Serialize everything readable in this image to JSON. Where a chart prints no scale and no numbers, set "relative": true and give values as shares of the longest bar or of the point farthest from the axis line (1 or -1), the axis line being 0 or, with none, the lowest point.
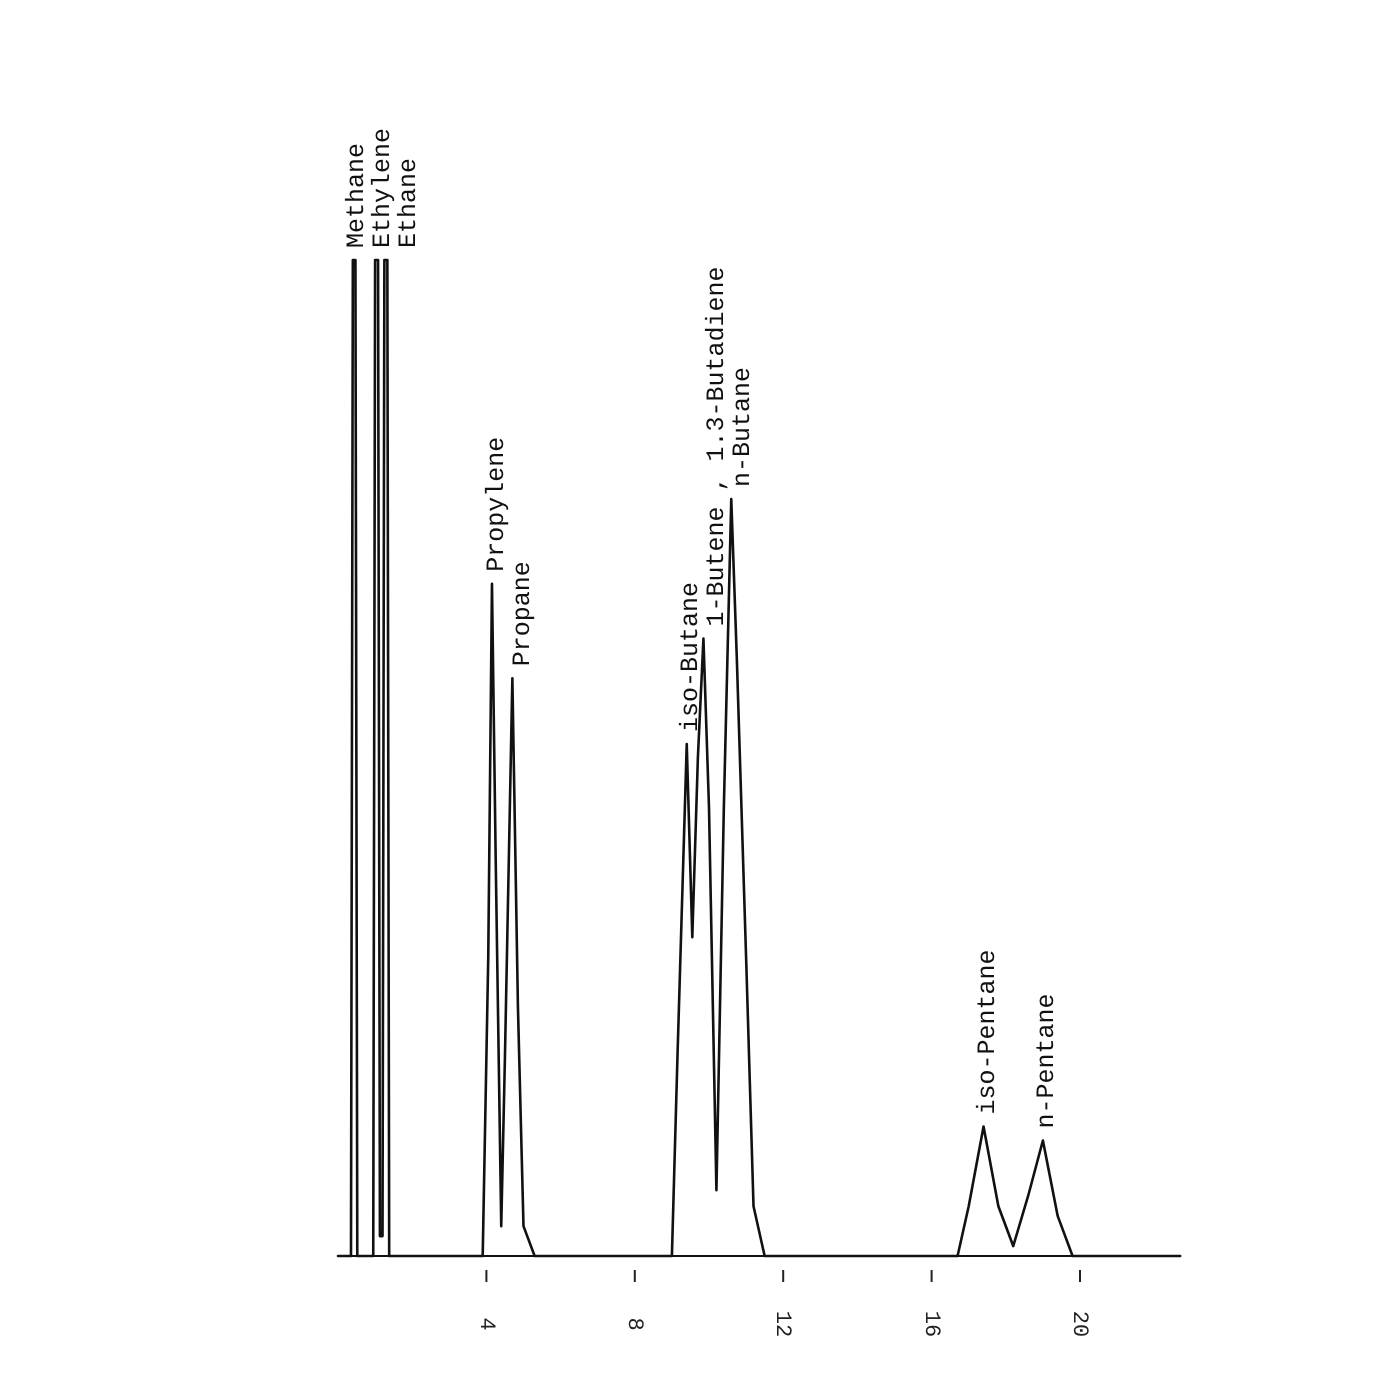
{
  "chart_data": {
    "type": "line",
    "relative": true,
    "xlim": [
      0,
      22.7
    ],
    "xticks": [
      4,
      8,
      12,
      16,
      20
    ],
    "series": [
      {
        "color": "#111111",
        "x": [
          0,
          0.35,
          0.4,
          0.47,
          0.52,
          0.95,
          1.0,
          1.08,
          1.13,
          1.2,
          1.25,
          1.33,
          1.38,
          3.9,
          4.05,
          4.15,
          4.25,
          4.4,
          4.5,
          4.7,
          4.85,
          5.0,
          5.3,
          9.0,
          9.15,
          9.4,
          9.55,
          9.7,
          9.85,
          10.0,
          10.2,
          10.4,
          10.6,
          10.75,
          11.0,
          11.2,
          11.5,
          16.7,
          17.0,
          17.4,
          17.8,
          18.2,
          18.6,
          19.0,
          19.4,
          19.8,
          22.7
        ],
        "values": [
          0,
          0,
          1,
          1,
          0,
          0,
          1,
          1,
          0.02,
          0.02,
          1,
          1,
          0,
          0,
          0.3,
          0.675,
          0.4,
          0.03,
          0.2,
          0.58,
          0.25,
          0.03,
          0,
          0,
          0.2,
          0.514,
          0.32,
          0.5,
          0.62,
          0.45,
          0.066,
          0.45,
          0.76,
          0.6,
          0.3,
          0.05,
          0,
          0,
          0.05,
          0.13,
          0.05,
          0.01,
          0.06,
          0.116,
          0.04,
          0,
          0
        ]
      }
    ],
    "annotations": [
      {
        "text": "Methane",
        "x": 0.4,
        "y": 1
      },
      {
        "text": "Ethylene",
        "x": 1.0,
        "y": 1
      },
      {
        "text": "Ethane",
        "x": 1.33,
        "y": 1
      },
      {
        "text": "Propylene",
        "x": 4.15,
        "y": 0.675
      },
      {
        "text": "Propane",
        "x": 4.7,
        "y": 0.58
      },
      {
        "text": "iso-Butane",
        "x": 9.4,
        "y": 0.514
      },
      {
        "text": "1-Butene , 1.3-Butadiene",
        "x": 9.85,
        "y": 0.62
      },
      {
        "text": "n-Butane",
        "x": 10.6,
        "y": 0.76
      },
      {
        "text": "iso-Pentane",
        "x": 17.4,
        "y": 0.13
      },
      {
        "text": "n-Pentane",
        "x": 19.0,
        "y": 0.116
      }
    ]
  }
}
